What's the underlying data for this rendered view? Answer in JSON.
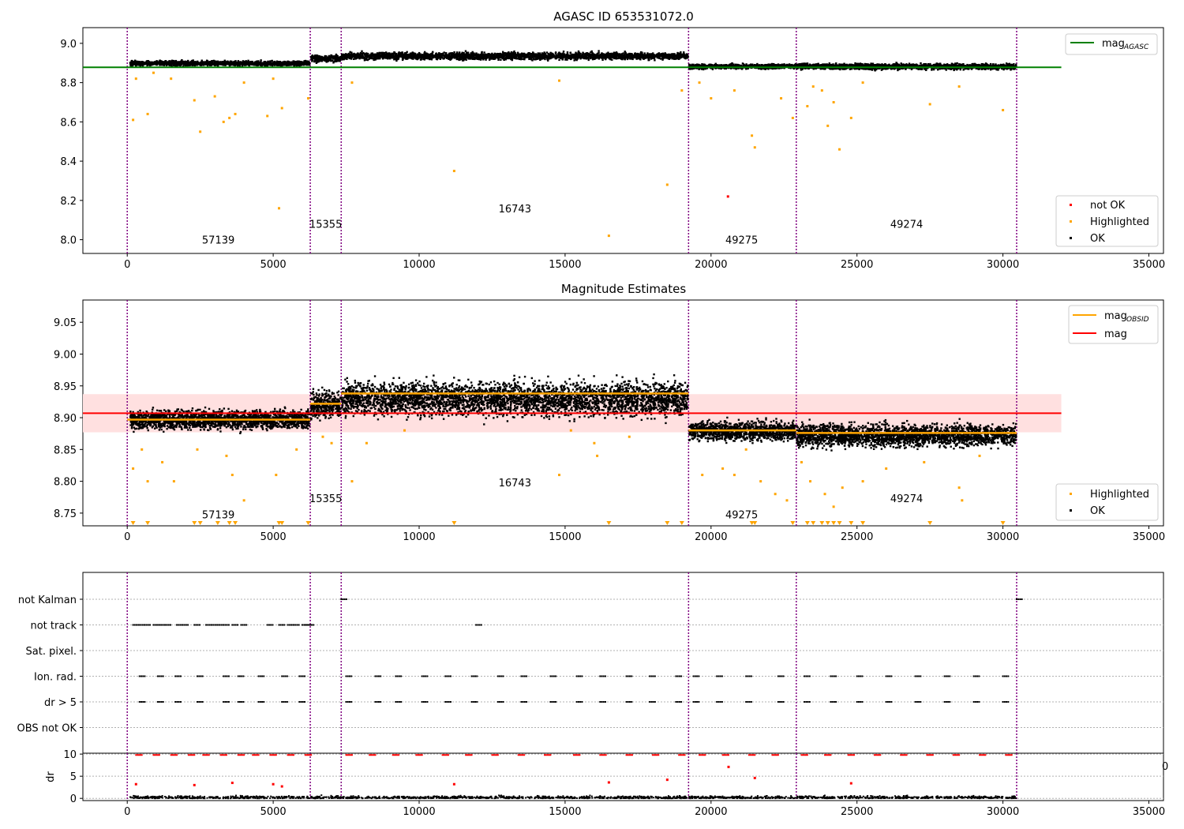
{
  "figure": {
    "title": "AGASC ID 653531072.0"
  },
  "colors": {
    "ok": "#000000",
    "highlighted": "#ffa500",
    "not_ok": "#ff0000",
    "obs_line": "#800080",
    "agasc_line": "#008000",
    "mag_line": "#ff0000",
    "band": "#ffe0e0",
    "obs_mag_line": "#ffa500"
  },
  "obs_boundaries": [
    0,
    6270,
    7330,
    19230,
    22920,
    30470
  ],
  "chart_data": [
    {
      "type": "scatter",
      "title": "",
      "xlim": [
        -1520,
        35500
      ],
      "ylim": [
        7.93,
        9.08
      ],
      "xticks": [
        0,
        5000,
        10000,
        15000,
        20000,
        25000,
        30000,
        35000
      ],
      "yticks": [
        8.0,
        8.2,
        8.4,
        8.6,
        8.8,
        9.0
      ],
      "ytick_labels": [
        "8.0",
        "8.2",
        "8.4",
        "8.6",
        "8.8",
        "9.0"
      ],
      "lines": [
        {
          "name": "mag",
          "subscript": "AGASC",
          "y": 8.878,
          "x0": -1520,
          "x1": 32000
        }
      ],
      "legend_lines_position": "top-right",
      "legend_points": [
        {
          "name": "not OK",
          "kind": "not_ok"
        },
        {
          "name": "Highlighted",
          "kind": "highlighted"
        },
        {
          "name": "OK",
          "kind": "ok"
        }
      ],
      "legend_points_position": "bottom-right",
      "segments": [
        {
          "x0": 100,
          "x1": 6250,
          "mean": 8.898,
          "spread": 0.008
        },
        {
          "x0": 6290,
          "x1": 7310,
          "mean": 8.922,
          "spread": 0.012
        },
        {
          "x0": 7350,
          "x1": 19210,
          "mean": 8.935,
          "spread": 0.012
        },
        {
          "x0": 19250,
          "x1": 22900,
          "mean": 8.882,
          "spread": 0.008
        },
        {
          "x0": 22940,
          "x1": 30450,
          "mean": 8.882,
          "spread": 0.01
        }
      ],
      "highlighted": [
        [
          200,
          8.61
        ],
        [
          300,
          8.82
        ],
        [
          700,
          8.64
        ],
        [
          900,
          8.85
        ],
        [
          1500,
          8.82
        ],
        [
          2300,
          8.71
        ],
        [
          2500,
          8.55
        ],
        [
          3000,
          8.73
        ],
        [
          3300,
          8.6
        ],
        [
          3500,
          8.62
        ],
        [
          3700,
          8.64
        ],
        [
          4000,
          8.8
        ],
        [
          4800,
          8.63
        ],
        [
          5000,
          8.82
        ],
        [
          5200,
          8.16
        ],
        [
          5300,
          8.67
        ],
        [
          6200,
          8.72
        ],
        [
          7700,
          8.8
        ],
        [
          11200,
          8.35
        ],
        [
          14800,
          8.81
        ],
        [
          16500,
          8.02
        ],
        [
          18500,
          8.28
        ],
        [
          19000,
          8.76
        ],
        [
          19600,
          8.8
        ],
        [
          20000,
          8.72
        ],
        [
          20800,
          8.76
        ],
        [
          21500,
          8.47
        ],
        [
          21400,
          8.53
        ],
        [
          22400,
          8.72
        ],
        [
          22800,
          8.62
        ],
        [
          23300,
          8.68
        ],
        [
          23500,
          8.78
        ],
        [
          23800,
          8.76
        ],
        [
          24000,
          8.58
        ],
        [
          24200,
          8.7
        ],
        [
          24400,
          8.46
        ],
        [
          24800,
          8.62
        ],
        [
          25200,
          8.8
        ],
        [
          27500,
          8.69
        ],
        [
          28500,
          8.78
        ],
        [
          30000,
          8.66
        ]
      ],
      "not_ok": [
        [
          20580,
          8.22
        ]
      ],
      "obs_labels": [
        {
          "text": "57139",
          "x": 3120,
          "y": 7.98
        },
        {
          "text": "15355",
          "x": 6800,
          "y": 8.06
        },
        {
          "text": "16743",
          "x": 13280,
          "y": 8.14
        },
        {
          "text": "49275",
          "x": 21050,
          "y": 7.98
        },
        {
          "text": "49274",
          "x": 26700,
          "y": 8.06
        }
      ]
    },
    {
      "type": "scatter",
      "title": "Magnitude Estimates",
      "xlim": [
        -1520,
        35500
      ],
      "ylim": [
        8.73,
        9.085
      ],
      "xticks": [
        0,
        5000,
        10000,
        15000,
        20000,
        25000,
        30000,
        35000
      ],
      "yticks": [
        8.75,
        8.8,
        8.85,
        8.9,
        8.95,
        9.0,
        9.05
      ],
      "ytick_labels": [
        "8.75",
        "8.80",
        "8.85",
        "8.90",
        "8.95",
        "9.00",
        "9.05"
      ],
      "mag": {
        "name": "mag",
        "y": 8.907,
        "band": [
          8.877,
          8.937
        ],
        "x0": -1520,
        "x1": 32000
      },
      "obs_mag_name": "mag",
      "obs_mag_subscript": "OBSID",
      "obs_mag": [
        {
          "x0": 0,
          "x1": 6270,
          "y": 8.897
        },
        {
          "x0": 6270,
          "x1": 7330,
          "y": 8.922
        },
        {
          "x0": 7330,
          "x1": 19230,
          "y": 8.938
        },
        {
          "x0": 19230,
          "x1": 22920,
          "y": 8.88
        },
        {
          "x0": 22920,
          "x1": 30470,
          "y": 8.876
        }
      ],
      "legend_lines_position": "top-right",
      "legend_points": [
        {
          "name": "Highlighted",
          "kind": "highlighted"
        },
        {
          "name": "OK",
          "kind": "ok"
        }
      ],
      "legend_points_position": "bottom-right",
      "segments": [
        {
          "x0": 100,
          "x1": 6250,
          "mean": 8.897,
          "spread": 0.01
        },
        {
          "x0": 6290,
          "x1": 7310,
          "mean": 8.92,
          "spread": 0.014
        },
        {
          "x0": 7350,
          "x1": 19210,
          "mean": 8.93,
          "spread": 0.018
        },
        {
          "x0": 19250,
          "x1": 22900,
          "mean": 8.879,
          "spread": 0.01
        },
        {
          "x0": 22940,
          "x1": 30450,
          "mean": 8.872,
          "spread": 0.012
        }
      ],
      "highlighted": [
        [
          200,
          8.82
        ],
        [
          500,
          8.85
        ],
        [
          700,
          8.8
        ],
        [
          1200,
          8.83
        ],
        [
          1600,
          8.8
        ],
        [
          2400,
          8.85
        ],
        [
          3400,
          8.84
        ],
        [
          3600,
          8.81
        ],
        [
          4000,
          8.77
        ],
        [
          5100,
          8.81
        ],
        [
          5800,
          8.85
        ],
        [
          6700,
          8.87
        ],
        [
          7000,
          8.86
        ],
        [
          7700,
          8.8
        ],
        [
          8200,
          8.86
        ],
        [
          9500,
          8.88
        ],
        [
          14800,
          8.81
        ],
        [
          15200,
          8.88
        ],
        [
          16000,
          8.86
        ],
        [
          16100,
          8.84
        ],
        [
          17200,
          8.87
        ],
        [
          19700,
          8.81
        ],
        [
          20400,
          8.82
        ],
        [
          20800,
          8.81
        ],
        [
          21200,
          8.85
        ],
        [
          21700,
          8.8
        ],
        [
          22200,
          8.78
        ],
        [
          22600,
          8.77
        ],
        [
          23100,
          8.83
        ],
        [
          23400,
          8.8
        ],
        [
          23900,
          8.78
        ],
        [
          24200,
          8.76
        ],
        [
          24500,
          8.79
        ],
        [
          25200,
          8.8
        ],
        [
          26000,
          8.82
        ],
        [
          27300,
          8.83
        ],
        [
          28500,
          8.79
        ],
        [
          28600,
          8.77
        ],
        [
          29200,
          8.84
        ]
      ],
      "clipped_x": [
        200,
        700,
        2300,
        2500,
        3100,
        3500,
        3700,
        5200,
        5300,
        6200,
        11200,
        16500,
        18500,
        19000,
        21400,
        21500,
        22800,
        23300,
        23500,
        23800,
        24000,
        24200,
        24400,
        24800,
        25200,
        27500,
        30000
      ],
      "obs_labels": [
        {
          "text": "57139",
          "x": 3120,
          "y": 8.742
        },
        {
          "text": "15355",
          "x": 6800,
          "y": 8.767
        },
        {
          "text": "16743",
          "x": 13280,
          "y": 8.792
        },
        {
          "text": "49275",
          "x": 21050,
          "y": 8.742
        },
        {
          "text": "49274",
          "x": 26700,
          "y": 8.767
        }
      ]
    },
    {
      "type": "scatter",
      "title": "",
      "xlim": [
        -1520,
        35500
      ],
      "categories": [
        "not Kalman",
        "not track",
        "Sat. pixel.",
        "Ion. rad.",
        "dr > 5",
        "OBS not OK"
      ],
      "flag_rows": [
        {
          "name": "not Kalman",
          "x": [
            7330,
            30470
          ]
        },
        {
          "name": "not track",
          "x": [
            200,
            400,
            600,
            900,
            1100,
            1300,
            1700,
            1900,
            2300,
            2700,
            2900,
            3100,
            3300,
            3600,
            3900,
            4800,
            5200,
            5500,
            5700,
            6000,
            6100,
            6200,
            11950
          ]
        },
        {
          "name": "Sat. pixel.",
          "x": []
        },
        {
          "name": "Ion. rad.",
          "x": [
            420,
            1050,
            1650,
            2400,
            3300,
            3800,
            4500,
            5300,
            5900,
            7500,
            8500,
            9200,
            10100,
            10900,
            11800,
            12700,
            13500,
            14500,
            15400,
            16200,
            17100,
            17900,
            18800,
            19400,
            20200,
            21200,
            22300,
            23200,
            24100,
            25000,
            26000,
            27000,
            28000,
            29000,
            30000
          ]
        },
        {
          "name": "dr > 5",
          "x": [
            420,
            1050,
            1650,
            2400,
            3300,
            3800,
            4500,
            5300,
            5900,
            7500,
            8500,
            9200,
            10100,
            10900,
            11800,
            12700,
            13500,
            14500,
            15400,
            16200,
            17100,
            17900,
            18800,
            19400,
            20200,
            21200,
            22300,
            23200,
            24100,
            25000,
            26000,
            27000,
            28000,
            29000,
            30000
          ]
        },
        {
          "name": "OBS not OK",
          "x": []
        }
      ]
    },
    {
      "type": "scatter",
      "title": "",
      "ylabel": "dr",
      "xlim": [
        -1520,
        35500
      ],
      "ylim": [
        -0.5,
        10.2
      ],
      "xticks": [
        0,
        5000,
        10000,
        15000,
        20000,
        25000,
        30000,
        35000
      ],
      "yticks": [
        0,
        5,
        10
      ],
      "ytick_labels": [
        "0",
        "5",
        "10"
      ],
      "high_dr_x": [
        300,
        900,
        1500,
        2100,
        2600,
        3200,
        3800,
        4300,
        4900,
        5500,
        6100,
        7500,
        8300,
        9100,
        9900,
        10800,
        11600,
        12500,
        13400,
        14300,
        15300,
        16200,
        17100,
        18000,
        18900,
        19600,
        20400,
        21300,
        22100,
        23100,
        23900,
        24700,
        25600,
        26500,
        27400,
        28300,
        29200,
        30100
      ],
      "mid_dr": [
        [
          300,
          3.2
        ],
        [
          2300,
          3
        ],
        [
          3600,
          3.5
        ],
        [
          5000,
          3.2
        ],
        [
          5300,
          2.7
        ],
        [
          11200,
          3.2
        ],
        [
          16500,
          3.6
        ],
        [
          18500,
          4.2
        ],
        [
          20600,
          7.1
        ],
        [
          21500,
          4.6
        ],
        [
          24800,
          3.4
        ]
      ],
      "right_edge_label": "0"
    }
  ]
}
